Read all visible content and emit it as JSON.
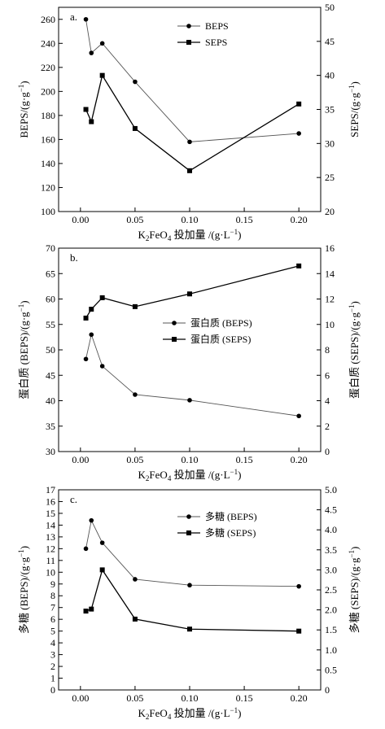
{
  "chart_data": [
    {
      "type": "line",
      "panel_label": "a.",
      "xlabel_main": "K",
      "xlabel_sub1": "2",
      "xlabel_mid": "FeO",
      "xlabel_sub2": "4",
      "xlabel_rest": " 投加量 /(g·L",
      "xlabel_sup": "−1",
      "xlabel_close": ")",
      "ylabel_left": "BEPS/(g·g",
      "ylabel_left_sup": "−1",
      "ylabel_left_close": ")",
      "ylabel_right": "SEPS/(g·g",
      "ylabel_right_sup": "−1",
      "ylabel_right_close": ")",
      "xlim": [
        -0.02,
        0.22
      ],
      "xticks": [
        0.0,
        0.05,
        0.1,
        0.15,
        0.2
      ],
      "xtick_labels": [
        "0.00",
        "0.05",
        "0.10",
        "0.15",
        "0.20"
      ],
      "ylim_left": [
        100,
        270
      ],
      "yticks_left": [
        100,
        120,
        140,
        160,
        180,
        200,
        220,
        240,
        260
      ],
      "ylim_right": [
        20,
        50
      ],
      "yticks_right": [
        20,
        25,
        30,
        35,
        40,
        45,
        50
      ],
      "legend_position": "top-center",
      "series": [
        {
          "name": "BEPS",
          "marker": "circle",
          "axis": "left",
          "x": [
            0.005,
            0.01,
            0.02,
            0.05,
            0.1,
            0.2
          ],
          "y": [
            260,
            232,
            240,
            208,
            158,
            165
          ]
        },
        {
          "name": "SEPS",
          "marker": "square",
          "axis": "right",
          "x": [
            0.005,
            0.01,
            0.02,
            0.05,
            0.1,
            0.2
          ],
          "y": [
            35.0,
            33.2,
            40.0,
            32.2,
            26.0,
            35.8
          ]
        }
      ]
    },
    {
      "type": "line",
      "panel_label": "b.",
      "xlabel_main": "K",
      "xlabel_sub1": "2",
      "xlabel_mid": "FeO",
      "xlabel_sub2": "4",
      "xlabel_rest": " 投加量 /(g·L",
      "xlabel_sup": "−1",
      "xlabel_close": ")",
      "ylabel_left": "蛋白质 (BEPS)/(g·g",
      "ylabel_left_sup": "−1",
      "ylabel_left_close": ")",
      "ylabel_right": "蛋白质 (SEPS)/(g·g",
      "ylabel_right_sup": "−1",
      "ylabel_right_close": ")",
      "xlim": [
        -0.02,
        0.22
      ],
      "xticks": [
        0.0,
        0.05,
        0.1,
        0.15,
        0.2
      ],
      "xtick_labels": [
        "0.00",
        "0.05",
        "0.10",
        "0.15",
        "0.20"
      ],
      "ylim_left": [
        30,
        70
      ],
      "yticks_left": [
        30,
        35,
        40,
        45,
        50,
        55,
        60,
        65,
        70
      ],
      "ylim_right": [
        0,
        16
      ],
      "yticks_right": [
        0,
        2,
        4,
        6,
        8,
        10,
        12,
        14,
        16
      ],
      "legend_position": "right",
      "series": [
        {
          "name": "蛋白质 (BEPS)",
          "marker": "circle",
          "axis": "left",
          "x": [
            0.005,
            0.01,
            0.02,
            0.05,
            0.1,
            0.2
          ],
          "y": [
            48.2,
            53.0,
            46.8,
            41.2,
            40.1,
            37.0
          ]
        },
        {
          "name": "蛋白质 (SEPS)",
          "marker": "square",
          "axis": "right",
          "x": [
            0.005,
            0.01,
            0.02,
            0.05,
            0.1,
            0.2
          ],
          "y": [
            10.5,
            11.2,
            12.1,
            11.4,
            12.4,
            14.6
          ]
        }
      ]
    },
    {
      "type": "line",
      "panel_label": "c.",
      "xlabel_main": "K",
      "xlabel_sub1": "2",
      "xlabel_mid": "FeO",
      "xlabel_sub2": "4",
      "xlabel_rest": " 投加量 /(g·L",
      "xlabel_sup": "−1",
      "xlabel_close": ")",
      "ylabel_left": "多糖 (BEPS)/(g·g",
      "ylabel_left_sup": "−1",
      "ylabel_left_close": ")",
      "ylabel_right": "多糖 (SEPS)/(g·g",
      "ylabel_right_sup": "−1",
      "ylabel_right_close": ")",
      "xlim": [
        -0.02,
        0.22
      ],
      "xticks": [
        0.0,
        0.05,
        0.1,
        0.15,
        0.2
      ],
      "xtick_labels": [
        "0.00",
        "0.05",
        "0.10",
        "0.15",
        "0.20"
      ],
      "ylim_left": [
        0,
        17
      ],
      "yticks_left": [
        0,
        1,
        2,
        3,
        4,
        5,
        6,
        7,
        8,
        9,
        10,
        11,
        12,
        13,
        14,
        15,
        16,
        17
      ],
      "ylim_right": [
        0,
        5
      ],
      "yticks_right": [
        0,
        0.5,
        1.0,
        1.5,
        2.0,
        2.5,
        3.0,
        3.5,
        4.0,
        4.5,
        5.0
      ],
      "ytick_labels_right": [
        "0",
        "0.5",
        "1.0",
        "1.5",
        "2.0",
        "2.5",
        "3.0",
        "3.5",
        "4.0",
        "4.5",
        "5.0"
      ],
      "legend_position": "top-center",
      "series": [
        {
          "name": "多糖 (BEPS)",
          "marker": "circle",
          "axis": "left",
          "x": [
            0.005,
            0.01,
            0.02,
            0.05,
            0.1,
            0.2
          ],
          "y": [
            12.0,
            14.4,
            12.5,
            9.4,
            8.9,
            8.8
          ]
        },
        {
          "name": "多糖 (SEPS)",
          "marker": "square",
          "axis": "right",
          "x": [
            0.005,
            0.01,
            0.02,
            0.05,
            0.1,
            0.2
          ],
          "y": [
            1.97,
            2.02,
            3.0,
            1.77,
            1.52,
            1.47
          ]
        }
      ]
    }
  ]
}
